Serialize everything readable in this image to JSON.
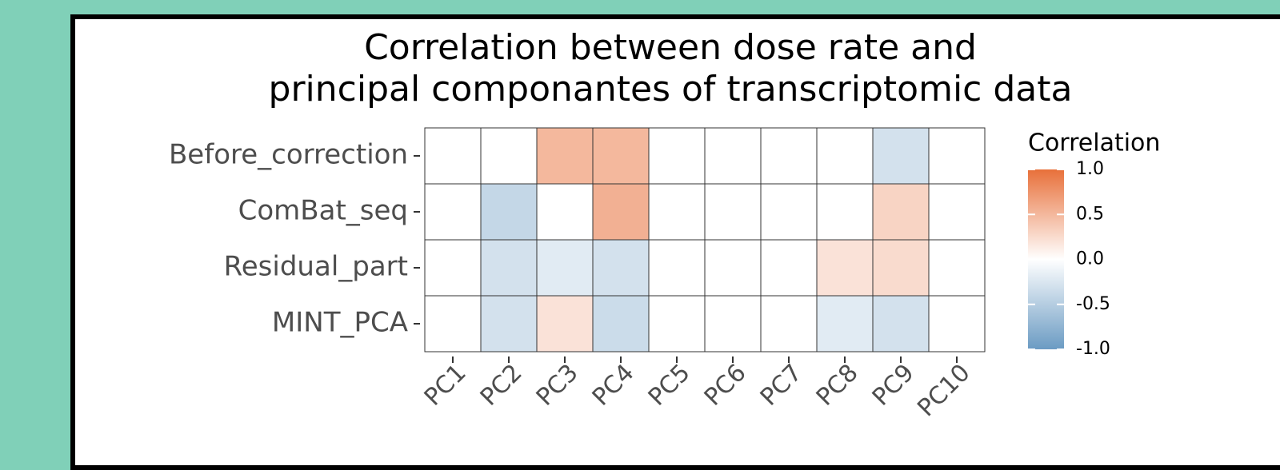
{
  "chart_data": {
    "type": "heatmap",
    "title": [
      "Correlation between dose rate and",
      "principal componantes of transcriptomic data"
    ],
    "x_categories": [
      "PC1",
      "PC2",
      "PC3",
      "PC4",
      "PC5",
      "PC6",
      "PC7",
      "PC8",
      "PC9",
      "PC10"
    ],
    "y_categories": [
      "Before_correction",
      "ComBat_seq",
      "Residual_part",
      "MINT_PCA"
    ],
    "values": [
      [
        0,
        0,
        0.5,
        0.5,
        0,
        0,
        0,
        0,
        -0.3,
        0
      ],
      [
        0,
        -0.4,
        0,
        0.55,
        0,
        0,
        0,
        0,
        0.3,
        0
      ],
      [
        0,
        -0.3,
        -0.2,
        -0.3,
        0,
        0,
        0,
        0.2,
        0.25,
        0
      ],
      [
        0,
        -0.3,
        0.2,
        -0.35,
        0,
        0,
        0,
        -0.2,
        -0.3,
        0
      ]
    ],
    "legend_title": "Correlation",
    "clim": [
      -1,
      1
    ],
    "cticks": [
      {
        "value": 1,
        "label": "1.0"
      },
      0.5,
      {
        "value": 0,
        "label": "0.0"
      },
      -0.5,
      {
        "value": -1,
        "label": "-1.0"
      }
    ],
    "colors": {
      "low": "#6b9bc3",
      "mid": "#ffffff",
      "high": "#e8703a"
    }
  }
}
